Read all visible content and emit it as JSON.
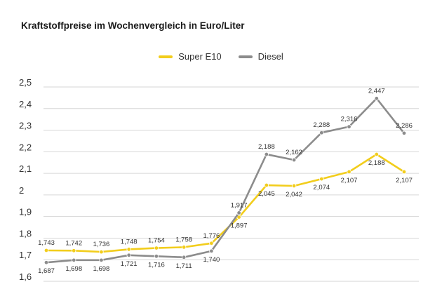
{
  "title": "Kraftstoffpreise im Wochenvergleich in Euro/Liter",
  "colors": {
    "super": "#f2cd1c",
    "diesel": "#8c8c8c",
    "grid": "#d6d6d6"
  },
  "legend": [
    {
      "name": "Super E10",
      "color": "#f2cd1c"
    },
    {
      "name": "Diesel",
      "color": "#8c8c8c"
    }
  ],
  "chart_data": {
    "type": "line",
    "title": "Kraftstoffpreise im Wochenvergleich in Euro/Liter",
    "xlabel": "",
    "ylabel": "",
    "ylim": [
      1.6,
      2.5
    ],
    "yticks": [
      "2,5",
      "2,4",
      "2,3",
      "2,2",
      "2,1",
      "2",
      "1,9",
      "1,8",
      "1,7",
      "1,6"
    ],
    "grid": true,
    "legend_position": "top-center",
    "series": [
      {
        "name": "Super E10",
        "color": "#f2cd1c",
        "values": [
          1.743,
          1.742,
          1.736,
          1.748,
          1.754,
          1.758,
          1.776,
          1.897,
          2.045,
          2.042,
          2.074,
          2.107,
          2.188,
          2.107
        ],
        "labels": [
          "1,743",
          "1,742",
          "1,736",
          "1,748",
          "1,754",
          "1,758",
          "1,776",
          "1,897",
          "2,045",
          "2,042",
          "2,074",
          "2,107",
          "2,188",
          "2,107"
        ]
      },
      {
        "name": "Diesel",
        "color": "#8c8c8c",
        "values": [
          1.687,
          1.698,
          1.698,
          1.721,
          1.716,
          1.711,
          1.74,
          1.917,
          2.188,
          2.162,
          2.288,
          2.316,
          2.447,
          2.286
        ],
        "labels": [
          "1,687",
          "1,698",
          "1,698",
          "1,721",
          "1,716",
          "1,711",
          "1,740",
          "1,917",
          "2,188",
          "2,162",
          "2,288",
          "2,316",
          "2,447",
          "2,286"
        ]
      }
    ]
  }
}
